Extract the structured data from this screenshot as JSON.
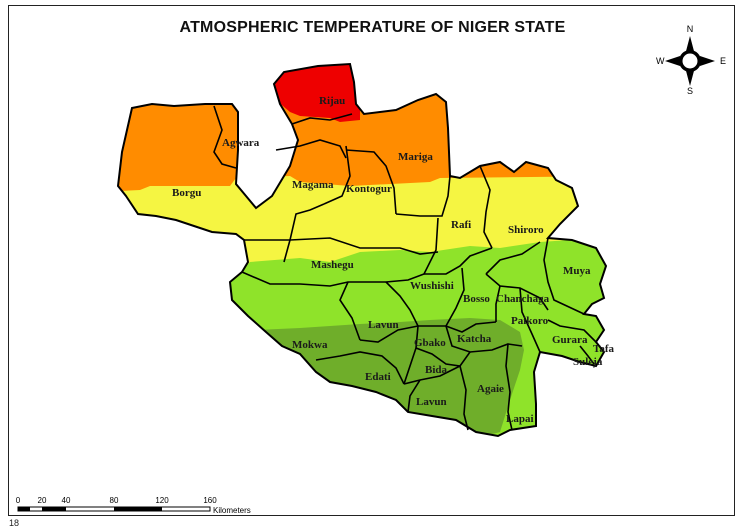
{
  "map": {
    "title": "ATMOSPHERIC TEMPERATURE OF NIGER STATE",
    "colors": {
      "red": "#ee0000",
      "orange": "#ff8c00",
      "yellow": "#f5f542",
      "light_green": "#8fe32a",
      "dark_green": "#6fae2a",
      "boundary": "#000000"
    },
    "lgas": [
      {
        "id": "rijau",
        "label": "Rijau"
      },
      {
        "id": "agwara",
        "label": "Agwara"
      },
      {
        "id": "mariga",
        "label": "Mariga"
      },
      {
        "id": "borgu",
        "label": "Borgu"
      },
      {
        "id": "magama",
        "label": "Magama"
      },
      {
        "id": "kontogur",
        "label": "Kontogur"
      },
      {
        "id": "rafi",
        "label": "Rafi"
      },
      {
        "id": "shiroro",
        "label": "Shiroro"
      },
      {
        "id": "mashegu",
        "label": "Mashegu"
      },
      {
        "id": "wushishi",
        "label": "Wushishi"
      },
      {
        "id": "muya",
        "label": "Muya"
      },
      {
        "id": "bosso",
        "label": "Bosso"
      },
      {
        "id": "chanchaga",
        "label": "Chanchaga"
      },
      {
        "id": "paikoro",
        "label": "Paikoro"
      },
      {
        "id": "lavun-north",
        "label": "Lavun"
      },
      {
        "id": "mokwa",
        "label": "Mokwa"
      },
      {
        "id": "gbako",
        "label": "Gbako"
      },
      {
        "id": "katcha",
        "label": "Katcha"
      },
      {
        "id": "gurara",
        "label": "Gurara"
      },
      {
        "id": "tafa",
        "label": "Tafa"
      },
      {
        "id": "suleja",
        "label": "Suleja"
      },
      {
        "id": "edati",
        "label": "Edati"
      },
      {
        "id": "bida",
        "label": "Bida"
      },
      {
        "id": "agaie",
        "label": "Agaie"
      },
      {
        "id": "lavun-south",
        "label": "Lavun"
      },
      {
        "id": "lapai",
        "label": "Lapai"
      }
    ]
  },
  "compass": {
    "north": "N",
    "south": "S",
    "east": "E",
    "west": "W"
  },
  "scale_bar": {
    "ticks": [
      "0",
      "20",
      "40",
      "80",
      "120",
      "160"
    ],
    "unit": "Kilometers"
  },
  "page_number_fragment": "18"
}
